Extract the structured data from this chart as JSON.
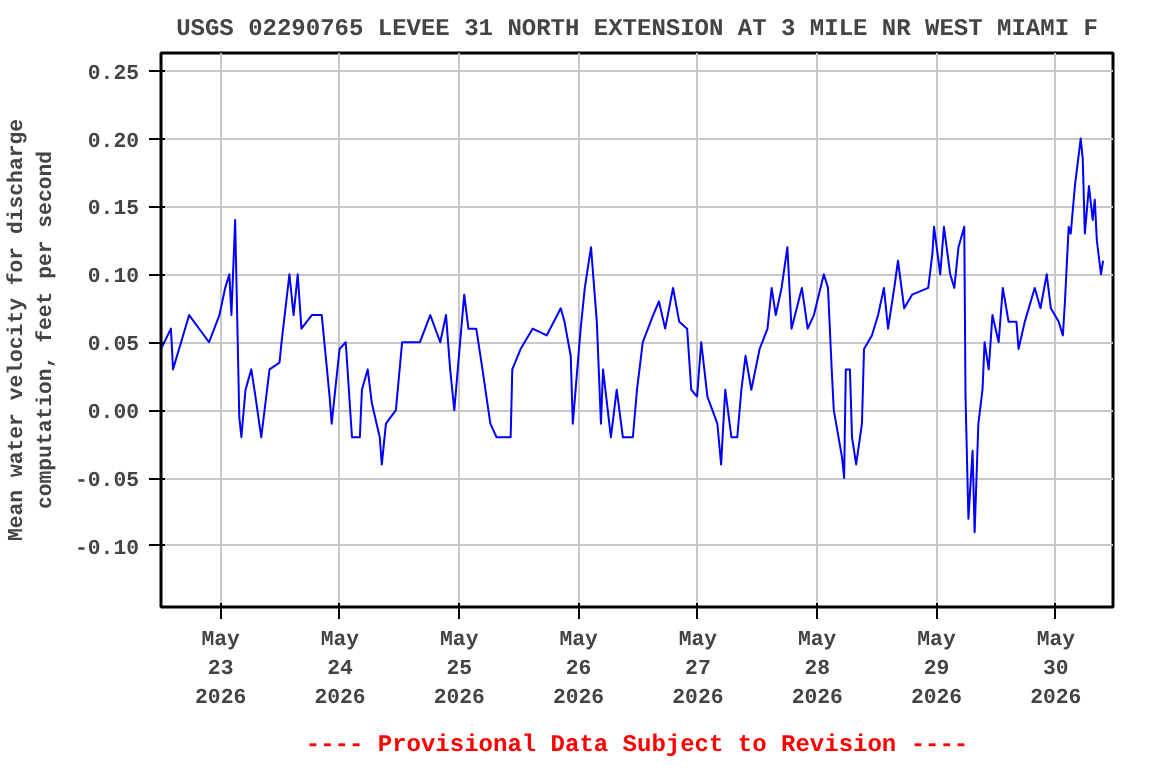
{
  "chart_data": {
    "type": "line",
    "title": "USGS 02290765 LEVEE 31 NORTH EXTENSION AT 3 MILE NR WEST MIAMI F",
    "ylabel": "Mean water velocity for discharge\ncomputation, feet per second",
    "annotations": [
      "---- Provisional Data Subject to Revision ----"
    ],
    "x": [
      "2026-05-22T12:00",
      "2026-05-22T14:00",
      "2026-05-22T14:25",
      "2026-05-22T17:40",
      "2026-05-22T21:40",
      "2026-05-22T23:45",
      "2026-05-23T00:55",
      "2026-05-23T01:45",
      "2026-05-23T02:10",
      "2026-05-23T02:55",
      "2026-05-23T03:45",
      "2026-05-23T04:10",
      "2026-05-23T05:00",
      "2026-05-23T06:10",
      "2026-05-23T07:00",
      "2026-05-23T08:10",
      "2026-05-23T09:50",
      "2026-05-23T11:50",
      "2026-05-23T12:15",
      "2026-05-23T13:50",
      "2026-05-23T14:40",
      "2026-05-23T15:30",
      "2026-05-23T16:15",
      "2026-05-23T18:20",
      "2026-05-23T20:20",
      "2026-05-23T21:55",
      "2026-05-23T22:20",
      "2026-05-23T23:55",
      "2026-05-24T01:10",
      "2026-05-24T02:25",
      "2026-05-24T04:00",
      "2026-05-24T04:25",
      "2026-05-24T05:35",
      "2026-05-24T06:25",
      "2026-05-24T08:00",
      "2026-05-24T08:25",
      "2026-05-24T09:15",
      "2026-05-24T11:15",
      "2026-05-24T12:30",
      "2026-05-24T16:05",
      "2026-05-24T18:10",
      "2026-05-24T20:10",
      "2026-05-24T21:20",
      "2026-05-24T22:10",
      "2026-05-24T23:00",
      "2026-05-25T00:10",
      "2026-05-25T01:00",
      "2026-05-25T01:50",
      "2026-05-25T03:25",
      "2026-05-25T04:40",
      "2026-05-25T06:15",
      "2026-05-25T07:30",
      "2026-05-25T10:20",
      "2026-05-25T10:40",
      "2026-05-25T12:20",
      "2026-05-25T14:45",
      "2026-05-25T17:35",
      "2026-05-25T20:25",
      "2026-05-25T21:10",
      "2026-05-25T22:25",
      "2026-05-25T22:50",
      "2026-05-26T00:25",
      "2026-05-26T01:15",
      "2026-05-26T02:30",
      "2026-05-26T03:40",
      "2026-05-26T04:30",
      "2026-05-26T04:55",
      "2026-05-26T06:30",
      "2026-05-26T07:40",
      "2026-05-26T08:55",
      "2026-05-26T10:55",
      "2026-05-26T11:45",
      "2026-05-26T12:55",
      "2026-05-26T15:00",
      "2026-05-26T16:10",
      "2026-05-26T17:25",
      "2026-05-26T19:00",
      "2026-05-26T20:15",
      "2026-05-26T21:50",
      "2026-05-26T22:40",
      "2026-05-26T23:50",
      "2026-05-27T00:40",
      "2026-05-27T01:55",
      "2026-05-27T03:55",
      "2026-05-27T04:40",
      "2026-05-27T05:30",
      "2026-05-27T06:45",
      "2026-05-27T07:55",
      "2026-05-27T08:45",
      "2026-05-27T09:35",
      "2026-05-27T10:45",
      "2026-05-27T12:25",
      "2026-05-27T14:00",
      "2026-05-27T14:50",
      "2026-05-27T15:40",
      "2026-05-27T16:50",
      "2026-05-27T18:00",
      "2026-05-27T18:50",
      "2026-05-27T20:55",
      "2026-05-27T22:05",
      "2026-05-27T23:20",
      "2026-05-28T01:20",
      "2026-05-28T02:10",
      "2026-05-28T02:55",
      "2026-05-28T03:20",
      "2026-05-28T05:00",
      "2026-05-28T05:25",
      "2026-05-28T05:45",
      "2026-05-28T06:35",
      "2026-05-28T07:00",
      "2026-05-28T07:50",
      "2026-05-28T09:00",
      "2026-05-28T09:25",
      "2026-05-28T11:00",
      "2026-05-28T12:15",
      "2026-05-28T13:25",
      "2026-05-28T14:15",
      "2026-05-28T15:30",
      "2026-05-28T16:15",
      "2026-05-28T17:30",
      "2026-05-28T19:05",
      "2026-05-28T22:20",
      "2026-05-28T23:10",
      "2026-05-28T23:30",
      "2026-05-29T00:45",
      "2026-05-29T01:30",
      "2026-05-29T02:45",
      "2026-05-29T03:35",
      "2026-05-29T04:25",
      "2026-05-29T05:35",
      "2026-05-29T05:50",
      "2026-05-29T06:25",
      "2026-05-29T07:15",
      "2026-05-29T07:40",
      "2026-05-29T08:25",
      "2026-05-29T09:15",
      "2026-05-29T09:40",
      "2026-05-29T10:30",
      "2026-05-29T11:15",
      "2026-05-29T12:30",
      "2026-05-29T13:20",
      "2026-05-29T14:30",
      "2026-05-29T16:05",
      "2026-05-29T16:30",
      "2026-05-29T17:45",
      "2026-05-29T19:45",
      "2026-05-29T20:55",
      "2026-05-29T22:10",
      "2026-05-29T23:00",
      "2026-05-30T00:35",
      "2026-05-30T01:25",
      "2026-05-30T01:50",
      "2026-05-30T02:35",
      "2026-05-30T03:00",
      "2026-05-30T03:50",
      "2026-05-30T05:00",
      "2026-05-30T05:25",
      "2026-05-30T05:50",
      "2026-05-30T06:40",
      "2026-05-30T07:25",
      "2026-05-30T07:50",
      "2026-05-30T08:15",
      "2026-05-30T09:05",
      "2026-05-30T09:30"
    ],
    "series": [
      {
        "color": "#0000ff",
        "values": [
          0.045,
          0.06,
          0.03,
          0.07,
          0.05,
          0.07,
          0.09,
          0.1,
          0.07,
          0.14,
          -0.005,
          -0.02,
          0.015,
          0.03,
          0.01,
          -0.02,
          0.03,
          0.035,
          0.05,
          0.1,
          0.07,
          0.1,
          0.06,
          0.07,
          0.07,
          0.01,
          -0.01,
          0.045,
          0.05,
          -0.02,
          -0.02,
          0.015,
          0.03,
          0.005,
          -0.02,
          -0.04,
          -0.01,
          0.0,
          0.05,
          0.05,
          0.07,
          0.05,
          0.07,
          0.03,
          0.0,
          0.05,
          0.085,
          0.06,
          0.06,
          0.03,
          -0.01,
          -0.02,
          -0.02,
          0.03,
          0.045,
          0.06,
          0.055,
          0.075,
          0.065,
          0.04,
          -0.01,
          0.06,
          0.09,
          0.12,
          0.065,
          -0.01,
          0.03,
          -0.02,
          0.015,
          -0.02,
          -0.02,
          0.015,
          0.05,
          0.07,
          0.08,
          0.06,
          0.09,
          0.065,
          0.06,
          0.015,
          0.01,
          0.05,
          0.01,
          -0.01,
          -0.04,
          0.015,
          -0.02,
          -0.02,
          0.015,
          0.04,
          0.015,
          0.045,
          0.06,
          0.09,
          0.07,
          0.09,
          0.12,
          0.06,
          0.09,
          0.06,
          0.07,
          0.1,
          0.09,
          0.03,
          0.0,
          -0.035,
          -0.05,
          0.03,
          0.03,
          -0.02,
          -0.04,
          -0.01,
          0.045,
          0.055,
          0.07,
          0.09,
          0.06,
          0.09,
          0.11,
          0.075,
          0.085,
          0.09,
          0.115,
          0.135,
          0.1,
          0.135,
          0.1,
          0.09,
          0.12,
          0.135,
          0.01,
          -0.08,
          -0.03,
          -0.09,
          -0.01,
          0.015,
          0.05,
          0.03,
          0.07,
          0.05,
          0.09,
          0.065,
          0.065,
          0.045,
          0.065,
          0.09,
          0.075,
          0.1,
          0.075,
          0.065,
          0.055,
          0.08,
          0.135,
          0.13,
          0.165,
          0.2,
          0.185,
          0.13,
          0.165,
          0.14,
          0.155,
          0.125,
          0.1,
          0.11
        ]
      }
    ],
    "xlim": [
      "2026-05-22T12:00",
      "2026-05-30T11:30"
    ],
    "xticks": [
      {
        "value": "2026-05-23",
        "label": "May\n23\n2026"
      },
      {
        "value": "2026-05-24",
        "label": "May\n24\n2026"
      },
      {
        "value": "2026-05-25",
        "label": "May\n25\n2026"
      },
      {
        "value": "2026-05-26",
        "label": "May\n26\n2026"
      },
      {
        "value": "2026-05-27",
        "label": "May\n27\n2026"
      },
      {
        "value": "2026-05-28",
        "label": "May\n28\n2026"
      },
      {
        "value": "2026-05-29",
        "label": "May\n29\n2026"
      },
      {
        "value": "2026-05-30",
        "label": "May\n30\n2026"
      }
    ],
    "ylim": [
      -0.145,
      0.263
    ],
    "yticks": [
      {
        "value": -0.1,
        "label": "-0.10"
      },
      {
        "value": -0.05,
        "label": "-0.05"
      },
      {
        "value": 0,
        "label": "0.00"
      },
      {
        "value": 0.05,
        "label": "0.05"
      },
      {
        "value": 0.1,
        "label": "0.10"
      },
      {
        "value": 0.15,
        "label": "0.15"
      },
      {
        "value": 0.2,
        "label": "0.20"
      },
      {
        "value": 0.25,
        "label": "0.25"
      }
    ],
    "grid": true
  }
}
